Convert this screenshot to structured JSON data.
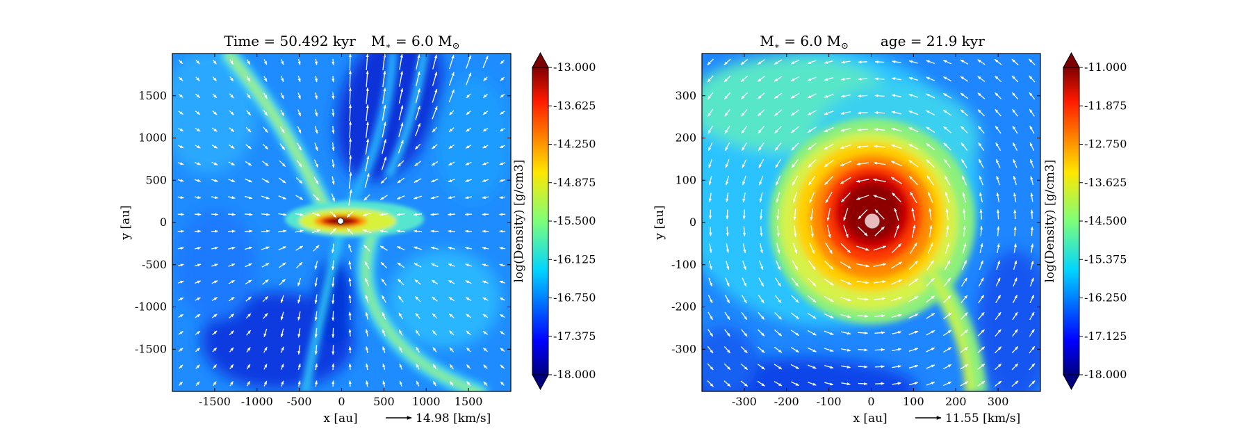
{
  "chart_data": [
    {
      "type": "heatmap",
      "title_left": "Time = 50.492 kyr",
      "title_right": "M",
      "title_right_sub": "∗",
      "title_right_val": " = 6.0 M",
      "title_right_sun": "⊙",
      "xlabel": "x [au]",
      "ylabel": "y [au]",
      "xlim": [
        -2000,
        2000
      ],
      "ylim": [
        -2000,
        2000
      ],
      "xticks": [
        "-1500",
        "-1000",
        "-500",
        "0",
        "500",
        "1000",
        "1500"
      ],
      "xtick_values": [
        -1500,
        -1000,
        -500,
        0,
        500,
        1000,
        1500
      ],
      "yticks": [
        "1500",
        "1000",
        "500",
        "0",
        "-500",
        "-1000",
        "-1500"
      ],
      "ytick_values": [
        1500,
        1000,
        500,
        0,
        -500,
        -1000,
        -1500
      ],
      "quiver_key": "14.98 [km/s]",
      "colorbar": {
        "label": "log(Density) [g/cm3]",
        "range": [
          -18.0,
          -13.0
        ],
        "ticks": [
          "-13.000",
          "-13.625",
          "-14.250",
          "-14.875",
          "-15.500",
          "-16.125",
          "-16.750",
          "-17.375",
          "-18.000"
        ],
        "tick_values": [
          -13.0,
          -13.625,
          -14.25,
          -14.875,
          -15.5,
          -16.125,
          -16.75,
          -17.375,
          -18.0
        ],
        "colormap": "jet",
        "extend": "both"
      },
      "features": {
        "central_star": [
          0,
          0
        ],
        "disk_extent_au": 250,
        "outflow_cavity": "blue low-density lobes toward upper-right and lower-left",
        "filaments": "dense streamers running upper-left to lower-right"
      }
    },
    {
      "type": "heatmap",
      "title_left": "M",
      "title_left_sub": "∗",
      "title_left_val": " = 6.0 M",
      "title_left_sun": "⊙",
      "title_right": "age = 21.9 kyr",
      "xlabel": "x [au]",
      "ylabel": "y [au]",
      "xlim": [
        -400,
        400
      ],
      "ylim": [
        -400,
        400
      ],
      "xticks": [
        "-300",
        "-200",
        "-100",
        "0",
        "100",
        "200",
        "300"
      ],
      "xtick_values": [
        -300,
        -200,
        -100,
        0,
        100,
        200,
        300
      ],
      "yticks": [
        "300",
        "200",
        "100",
        "0",
        "-100",
        "-200",
        "-300"
      ],
      "ytick_values": [
        300,
        200,
        100,
        0,
        -100,
        -200,
        -300
      ],
      "quiver_key": "11.55 [km/s]",
      "colorbar": {
        "label": "log(Density) [g/cm3]",
        "range": [
          -18.0,
          -11.0
        ],
        "ticks": [
          "-11.000",
          "-11.875",
          "-12.750",
          "-13.625",
          "-14.500",
          "-15.375",
          "-16.250",
          "-17.125",
          "-18.000"
        ],
        "tick_values": [
          -11.0,
          -11.875,
          -12.75,
          -13.625,
          -14.5,
          -15.375,
          -16.25,
          -17.125,
          -18.0
        ],
        "colormap": "jet",
        "extend": "both"
      },
      "features": {
        "central_star": [
          0,
          0
        ],
        "disk_radius_au": 100,
        "rotation": "counter-clockwise",
        "spiral_arm": "toward lower-right"
      }
    }
  ]
}
